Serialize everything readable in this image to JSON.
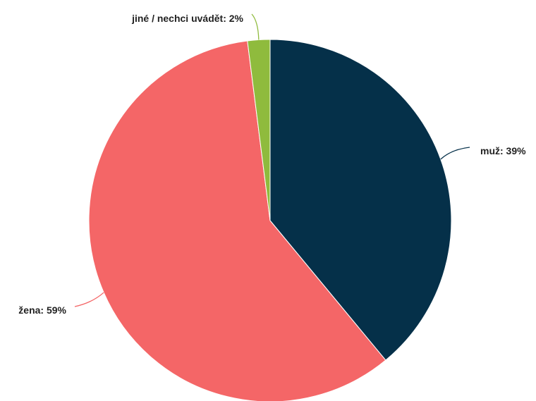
{
  "chart_data": {
    "type": "pie",
    "slices": [
      {
        "label": "muž",
        "value": 39,
        "display": "muž: 39%",
        "color": "#053049"
      },
      {
        "label": "žena",
        "value": 59,
        "display": "žena: 59%",
        "color": "#F46667"
      },
      {
        "label": "jiné / nechci uvádět",
        "value": 2,
        "display": "jiné / nechci uvádět: 2%",
        "color": "#8FBB3D"
      }
    ]
  }
}
